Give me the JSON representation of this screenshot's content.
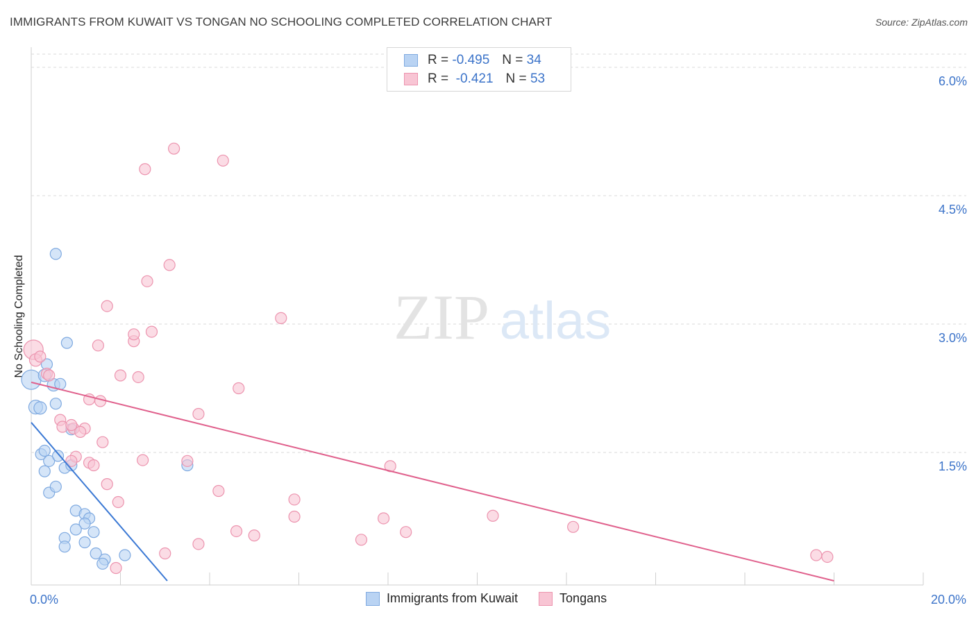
{
  "header": {
    "title": "IMMIGRANTS FROM KUWAIT VS TONGAN NO SCHOOLING COMPLETED CORRELATION CHART",
    "source": "Source: ZipAtlas.com"
  },
  "watermark": {
    "zip": "ZIP",
    "atlas": "atlas"
  },
  "legend_top": {
    "rows": [
      {
        "r_label": "R =",
        "r_value": "-0.495",
        "n_label": "N =",
        "n_value": "34"
      },
      {
        "r_label": "R =",
        "r_value": "-0.421",
        "n_label": "N =",
        "n_value": "53"
      }
    ]
  },
  "colors": {
    "blue_fill": "#b9d3f3",
    "blue_stroke": "#7ea9e0",
    "blue_line": "#3a78d4",
    "pink_fill": "#f8c5d4",
    "pink_stroke": "#ec93ae",
    "pink_line": "#e0608c",
    "tick_text": "#3b73c9",
    "grid": "#d9d9d9"
  },
  "chart_data": {
    "type": "scatter",
    "title": "IMMIGRANTS FROM KUWAIT VS TONGAN NO SCHOOLING COMPLETED CORRELATION CHART",
    "xlabel": "",
    "ylabel": "No Schooling Completed",
    "xlim": [
      0,
      20
    ],
    "ylim": [
      0,
      6.5
    ],
    "x_tick_labels": [
      {
        "value": 0,
        "label": "0.0%"
      },
      {
        "value": 20,
        "label": "20.0%"
      }
    ],
    "y_ticks": [
      {
        "value": 1.5,
        "label": "1.5%"
      },
      {
        "value": 3.0,
        "label": "3.0%"
      },
      {
        "value": 4.5,
        "label": "4.5%"
      },
      {
        "value": 6.0,
        "label": "6.0%"
      }
    ],
    "grid": true,
    "legend_position": "bottom",
    "series": [
      {
        "name": "Immigrants from Kuwait",
        "color": "blue",
        "points": [
          [
            0.0,
            2.35,
            14
          ],
          [
            0.1,
            2.03,
            10
          ],
          [
            0.2,
            2.02,
            9
          ],
          [
            0.3,
            2.4,
            9
          ],
          [
            0.55,
            3.82,
            8
          ],
          [
            0.8,
            2.78,
            8
          ],
          [
            0.35,
            2.53,
            8
          ],
          [
            0.5,
            2.29,
            9
          ],
          [
            0.65,
            2.3,
            8
          ],
          [
            0.55,
            2.07,
            8
          ],
          [
            0.9,
            1.77,
            8
          ],
          [
            0.22,
            1.48,
            8
          ],
          [
            0.3,
            1.52,
            8
          ],
          [
            0.4,
            1.4,
            8
          ],
          [
            0.3,
            1.28,
            8
          ],
          [
            0.75,
            1.32,
            8
          ],
          [
            0.9,
            1.35,
            8
          ],
          [
            0.6,
            1.46,
            8
          ],
          [
            3.5,
            1.35,
            8
          ],
          [
            0.4,
            1.03,
            8
          ],
          [
            0.55,
            1.1,
            8
          ],
          [
            1.0,
            0.82,
            8
          ],
          [
            1.2,
            0.78,
            8
          ],
          [
            1.3,
            0.73,
            8
          ],
          [
            1.2,
            0.67,
            8
          ],
          [
            1.4,
            0.57,
            8
          ],
          [
            1.0,
            0.6,
            8
          ],
          [
            0.75,
            0.5,
            8
          ],
          [
            1.2,
            0.45,
            8
          ],
          [
            0.75,
            0.4,
            8
          ],
          [
            1.45,
            0.32,
            8
          ],
          [
            1.65,
            0.25,
            8
          ],
          [
            1.6,
            0.2,
            8
          ],
          [
            2.1,
            0.3,
            8
          ]
        ],
        "trend": {
          "x1": 0.0,
          "y1": 1.85,
          "x2": 3.05,
          "y2": 0.0
        }
      },
      {
        "name": "Tongans",
        "color": "pink",
        "points": [
          [
            0.05,
            2.7,
            14
          ],
          [
            0.1,
            2.58,
            9
          ],
          [
            0.35,
            2.42,
            8
          ],
          [
            0.4,
            2.4,
            8
          ],
          [
            3.2,
            5.05,
            8
          ],
          [
            4.3,
            4.91,
            8
          ],
          [
            2.55,
            4.81,
            8
          ],
          [
            3.1,
            3.69,
            8
          ],
          [
            2.6,
            3.5,
            8
          ],
          [
            1.7,
            3.21,
            8
          ],
          [
            5.6,
            3.07,
            8
          ],
          [
            2.7,
            2.91,
            8
          ],
          [
            2.3,
            2.8,
            8
          ],
          [
            2.3,
            2.88,
            8
          ],
          [
            1.5,
            2.75,
            8
          ],
          [
            2.0,
            2.4,
            8
          ],
          [
            2.4,
            2.38,
            8
          ],
          [
            4.65,
            2.25,
            8
          ],
          [
            1.3,
            2.12,
            8
          ],
          [
            1.55,
            2.1,
            8
          ],
          [
            3.75,
            1.95,
            8
          ],
          [
            0.65,
            1.88,
            8
          ],
          [
            0.7,
            1.8,
            8
          ],
          [
            0.95,
            1.78,
            8
          ],
          [
            1.2,
            1.78,
            8
          ],
          [
            1.1,
            1.74,
            8
          ],
          [
            0.9,
            1.82,
            8
          ],
          [
            1.6,
            1.62,
            8
          ],
          [
            1.0,
            1.45,
            8
          ],
          [
            1.3,
            1.38,
            8
          ],
          [
            0.9,
            1.4,
            8
          ],
          [
            2.5,
            1.41,
            8
          ],
          [
            3.5,
            1.4,
            8
          ],
          [
            1.7,
            1.13,
            8
          ],
          [
            4.2,
            1.05,
            8
          ],
          [
            1.95,
            0.92,
            8
          ],
          [
            5.9,
            0.95,
            8
          ],
          [
            8.05,
            1.34,
            8
          ],
          [
            5.9,
            0.75,
            8
          ],
          [
            7.9,
            0.73,
            8
          ],
          [
            10.35,
            0.76,
            8
          ],
          [
            4.6,
            0.58,
            8
          ],
          [
            5.0,
            0.53,
            8
          ],
          [
            8.4,
            0.57,
            8
          ],
          [
            7.4,
            0.48,
            8
          ],
          [
            12.15,
            0.63,
            8
          ],
          [
            3.75,
            0.43,
            8
          ],
          [
            3.0,
            0.32,
            8
          ],
          [
            1.9,
            0.15,
            8
          ],
          [
            17.6,
            0.3,
            8
          ],
          [
            17.85,
            0.28,
            8
          ],
          [
            0.2,
            2.62,
            8
          ],
          [
            1.4,
            1.35,
            8
          ]
        ],
        "trend": {
          "x1": 0.0,
          "y1": 2.32,
          "x2": 18.0,
          "y2": 0.0
        }
      }
    ]
  }
}
